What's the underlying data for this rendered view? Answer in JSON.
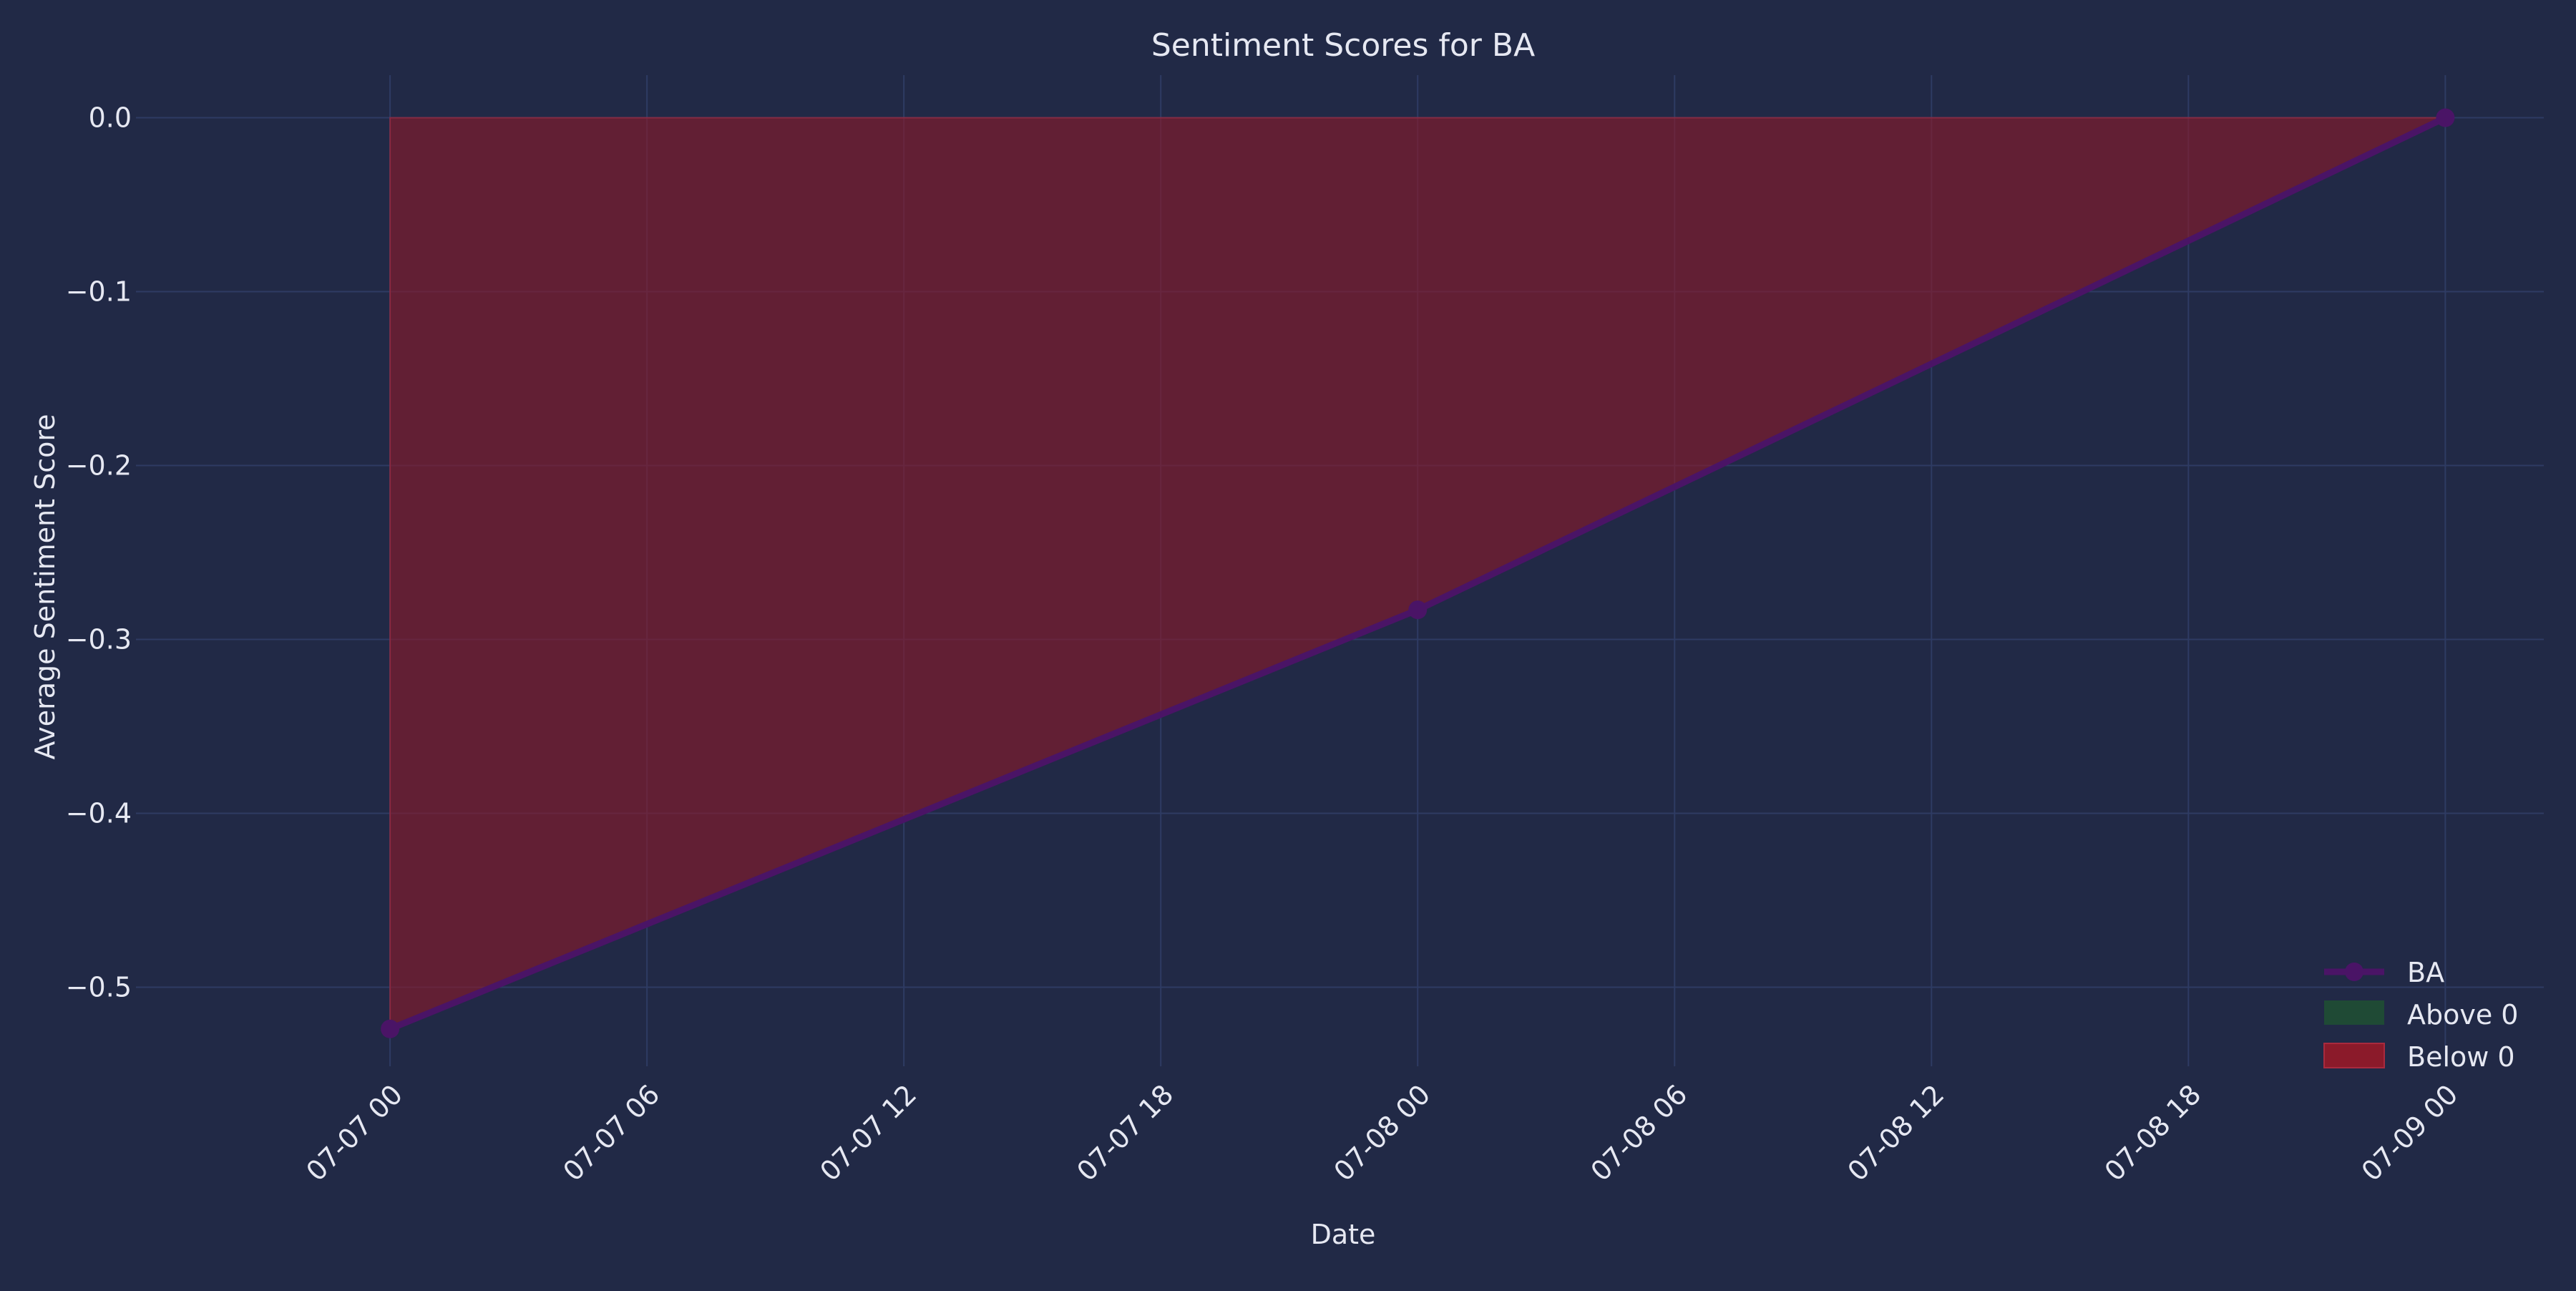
{
  "chart_data": {
    "type": "area",
    "title": "Sentiment Scores for BA",
    "xlabel": "Date",
    "ylabel": "Average Sentiment Score",
    "x_ticks": [
      "07-07 00",
      "07-07 06",
      "07-07 12",
      "07-07 18",
      "07-08 00",
      "07-08 06",
      "07-08 12",
      "07-08 18",
      "07-09 00"
    ],
    "x_range_hours": [
      -5.6,
      50.3
    ],
    "y_ticks": [
      0.0,
      -0.1,
      -0.2,
      -0.3,
      -0.4,
      -0.5
    ],
    "ylim": [
      -0.5455,
      0.0245
    ],
    "grid": true,
    "legend_position": "lower-right",
    "series": [
      {
        "name": "BA",
        "type": "line",
        "marker": "circle",
        "color": "#4a1466",
        "points": [
          {
            "x": "07-07 00",
            "y": -0.524
          },
          {
            "x": "07-08 00",
            "y": -0.283
          },
          {
            "x": "07-09 00",
            "y": 0.0
          }
        ]
      }
    ],
    "fills": [
      {
        "name": "Above 0",
        "color": "#1f4a35",
        "baseline": 0
      },
      {
        "name": "Below 0",
        "color": "#8b1a2a",
        "baseline": 0
      }
    ],
    "legend": [
      "BA",
      "Above 0",
      "Below 0"
    ],
    "colors": {
      "background": "#212946",
      "grid": "#2e3b63",
      "text": "#e6e8f2",
      "line": "#4a1466",
      "below_fill": "#8b1a2a",
      "above_fill": "#1f4a35"
    }
  }
}
